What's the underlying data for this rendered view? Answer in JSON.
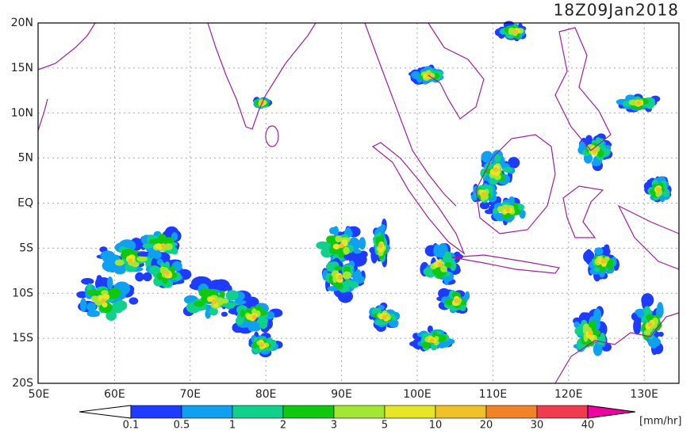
{
  "title": "18Z09Jan2018",
  "lat_labels": [
    "20N",
    "15N",
    "10N",
    "5N",
    "EQ",
    "5S",
    "10S",
    "15S",
    "20S"
  ],
  "lon_labels": [
    "50E",
    "60E",
    "70E",
    "80E",
    "90E",
    "100E",
    "110E",
    "120E",
    "130E"
  ],
  "colorbar": {
    "labels": [
      "0.1",
      "0.5",
      "1",
      "2",
      "3",
      "5",
      "10",
      "20",
      "30",
      "40"
    ],
    "colors": [
      "#1e3cff",
      "#10a0f0",
      "#10d08c",
      "#10c810",
      "#a0e632",
      "#e6e628",
      "#f0c028",
      "#f08228",
      "#f03c50"
    ],
    "over_color": "#f000a0",
    "unit": "[mm/hr]"
  }
}
